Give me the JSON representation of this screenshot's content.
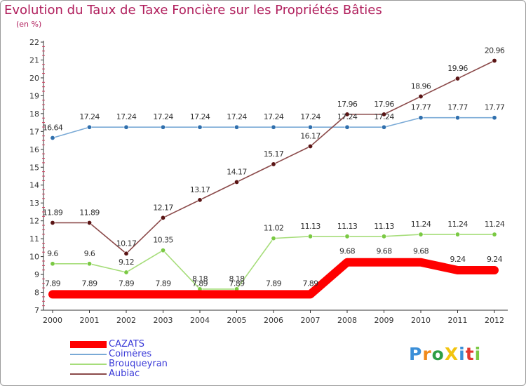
{
  "chart_data": {
    "type": "line",
    "title": "Evolution du Taux de Taxe Foncière sur les Propriétés Bâties",
    "subtitle": "(en %)",
    "categories": [
      "2000",
      "2001",
      "2002",
      "2003",
      "2004",
      "2005",
      "2006",
      "2007",
      "2008",
      "2009",
      "2010",
      "2011",
      "2012"
    ],
    "ylim": [
      7,
      22
    ],
    "y_ticks": [
      7,
      8,
      9,
      10,
      11,
      12,
      13,
      14,
      15,
      16,
      17,
      18,
      19,
      20,
      21,
      22
    ],
    "grid": false,
    "legend_position": "bottom-left",
    "series": [
      {
        "name": "CAZATS",
        "color": "#ff0000",
        "point_color": "#ff0000",
        "values": [
          7.89,
          7.89,
          7.89,
          7.89,
          7.89,
          7.89,
          7.89,
          7.89,
          9.68,
          9.68,
          9.68,
          9.24,
          9.24
        ],
        "labels": [
          "7.89",
          "7.89",
          "7.89",
          "7.89",
          "7.89",
          "7.89",
          "7.89",
          "7.89",
          "9.68",
          "9.68",
          "9.68",
          "9.24",
          "9.24"
        ]
      },
      {
        "name": "Coimères",
        "color": "#7aaad6",
        "point_color": "#2f6fad",
        "values": [
          16.64,
          17.24,
          17.24,
          17.24,
          17.24,
          17.24,
          17.24,
          17.24,
          17.24,
          17.24,
          17.77,
          17.77,
          17.77
        ],
        "labels": [
          "16.64",
          "17.24",
          "17.24",
          "17.24",
          "17.24",
          "17.24",
          "17.24",
          "17.24",
          "17.24",
          "17.24",
          "17.77",
          "17.77",
          "17.77"
        ]
      },
      {
        "name": "Brouqueyran",
        "color": "#a6dd7a",
        "point_color": "#7ac943",
        "values": [
          9.6,
          9.6,
          9.12,
          10.35,
          8.18,
          8.18,
          11.02,
          11.13,
          11.13,
          11.13,
          11.24,
          11.24,
          11.24
        ],
        "labels": [
          "9.6",
          "9.6",
          "9.12",
          "10.35",
          "8.18",
          "8.18",
          "11.02",
          "11.13",
          "11.13",
          "11.13",
          "11.24",
          "11.24",
          "11.24"
        ]
      },
      {
        "name": "Aubiac",
        "color": "#8b4a4a",
        "point_color": "#5a1414",
        "values": [
          11.89,
          11.89,
          10.17,
          12.17,
          13.17,
          14.17,
          15.17,
          16.17,
          17.96,
          17.96,
          18.96,
          19.96,
          20.96
        ],
        "labels": [
          "11.89",
          "11.89",
          "10.17",
          "12.17",
          "13.17",
          "14.17",
          "15.17",
          "16.17",
          "17.96",
          "17.96",
          "18.96",
          "19.96",
          "20.96"
        ]
      }
    ]
  },
  "logo": {
    "text": "ProXiti",
    "letters": [
      {
        "ch": "P",
        "color": "#3b8fd8"
      },
      {
        "ch": "r",
        "color": "#f08a1c"
      },
      {
        "ch": "o",
        "color": "#2e9e44"
      },
      {
        "ch": "X",
        "color": "#f2c40f"
      },
      {
        "ch": "i",
        "color": "#3b8fd8"
      },
      {
        "ch": "t",
        "color": "#e2382f"
      },
      {
        "ch": "i",
        "color": "#7ac943"
      }
    ]
  }
}
